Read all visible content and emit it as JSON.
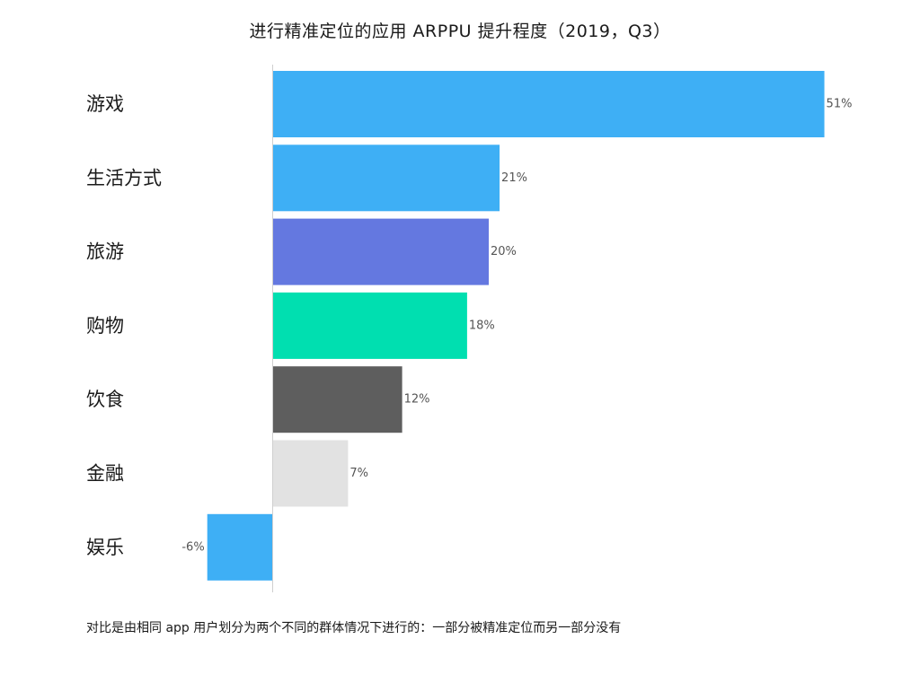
{
  "chart_data": {
    "type": "bar",
    "orientation": "horizontal",
    "title": "进行精准定位的应用 ARPPU 提升程度（2019，Q3）",
    "categories": [
      "游戏",
      "生活方式",
      "旅游",
      "购物",
      "饮食",
      "金融",
      "娱乐"
    ],
    "values": [
      51,
      21,
      20,
      18,
      12,
      7,
      -6
    ],
    "value_labels": [
      "51%",
      "21%",
      "20%",
      "18%",
      "12%",
      "7%",
      "-6%"
    ],
    "bar_colors": [
      "#3eaff5",
      "#3eaff5",
      "#6478e0",
      "#00dfb0",
      "#5e5e5e",
      "#e2e2e2",
      "#3eaff5"
    ],
    "unit": "%",
    "xlim": [
      -6,
      51
    ],
    "grid": false,
    "legend": "none",
    "footnote": "对比是由相同 app 用户划分为两个不同的群体情况下进行的：一部分被精准定位而另一部分没有"
  }
}
